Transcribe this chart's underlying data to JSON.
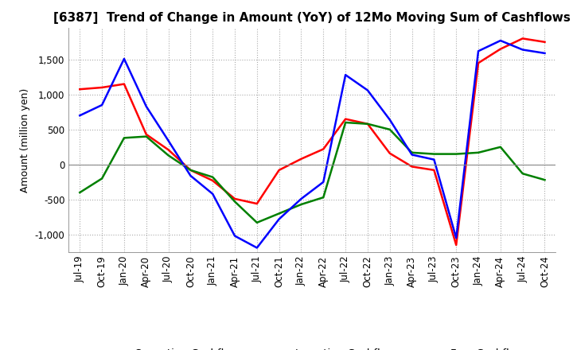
{
  "title": "[6387]  Trend of Change in Amount (YoY) of 12Mo Moving Sum of Cashflows",
  "ylabel": "Amount (million yen)",
  "ylim": [
    -1250,
    1950
  ],
  "yticks": [
    -1000,
    -500,
    0,
    500,
    1000,
    1500
  ],
  "x_labels": [
    "Jul-19",
    "Oct-19",
    "Jan-20",
    "Apr-20",
    "Jul-20",
    "Oct-20",
    "Jan-21",
    "Apr-21",
    "Jul-21",
    "Oct-21",
    "Jan-22",
    "Apr-22",
    "Jul-22",
    "Oct-22",
    "Jan-23",
    "Apr-23",
    "Jul-23",
    "Oct-23",
    "Jan-24",
    "Apr-24",
    "Jul-24",
    "Oct-24"
  ],
  "operating": [
    1075,
    1100,
    1150,
    430,
    210,
    -80,
    -230,
    -490,
    -560,
    -80,
    80,
    220,
    650,
    580,
    160,
    -30,
    -80,
    -1150,
    1450,
    1650,
    1800,
    1750
  ],
  "investing": [
    -400,
    -200,
    380,
    400,
    130,
    -80,
    -180,
    -530,
    -830,
    -700,
    -570,
    -470,
    600,
    580,
    500,
    170,
    150,
    150,
    170,
    250,
    -130,
    -220
  ],
  "free": [
    700,
    850,
    1510,
    830,
    340,
    -160,
    -420,
    -1020,
    -1190,
    -780,
    -490,
    -250,
    1280,
    1060,
    640,
    140,
    70,
    -1050,
    1620,
    1770,
    1640,
    1590
  ],
  "operating_color": "#ff0000",
  "investing_color": "#008000",
  "free_color": "#0000ff",
  "background_color": "#ffffff",
  "grid_color": "#aaaaaa",
  "title_fontsize": 11,
  "label_fontsize": 9,
  "tick_fontsize": 8.5,
  "legend_fontsize": 9.5
}
